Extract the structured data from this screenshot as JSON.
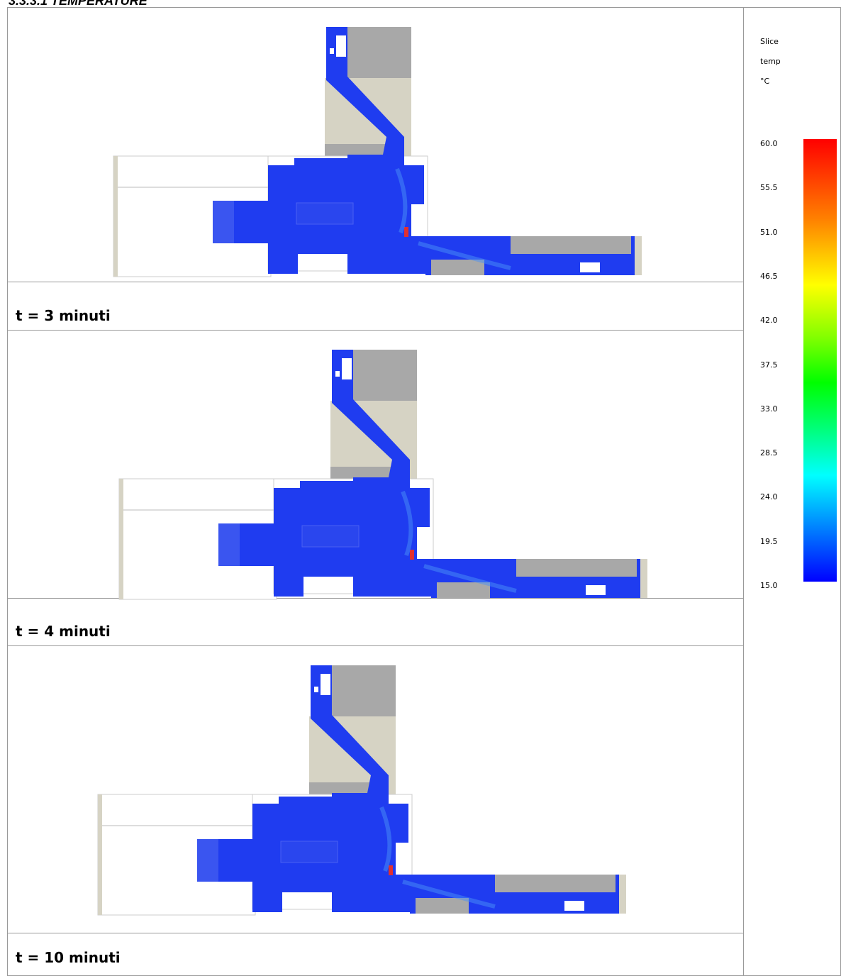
{
  "header": {
    "title": "3.3.3.1 TEMPERATURE"
  },
  "rows": [
    {
      "caption": "t = 3 minuti"
    },
    {
      "caption": "t = 4 minuti"
    },
    {
      "caption": "t = 10 minuti"
    }
  ],
  "legend": {
    "lines": [
      "Slice",
      "temp",
      "°C"
    ],
    "labels": [
      "60.0",
      "55.5",
      "51.0",
      "46.5",
      "42.0",
      "37.5",
      "33.0",
      "28.5",
      "24.0",
      "19.5",
      "15.0"
    ]
  }
}
